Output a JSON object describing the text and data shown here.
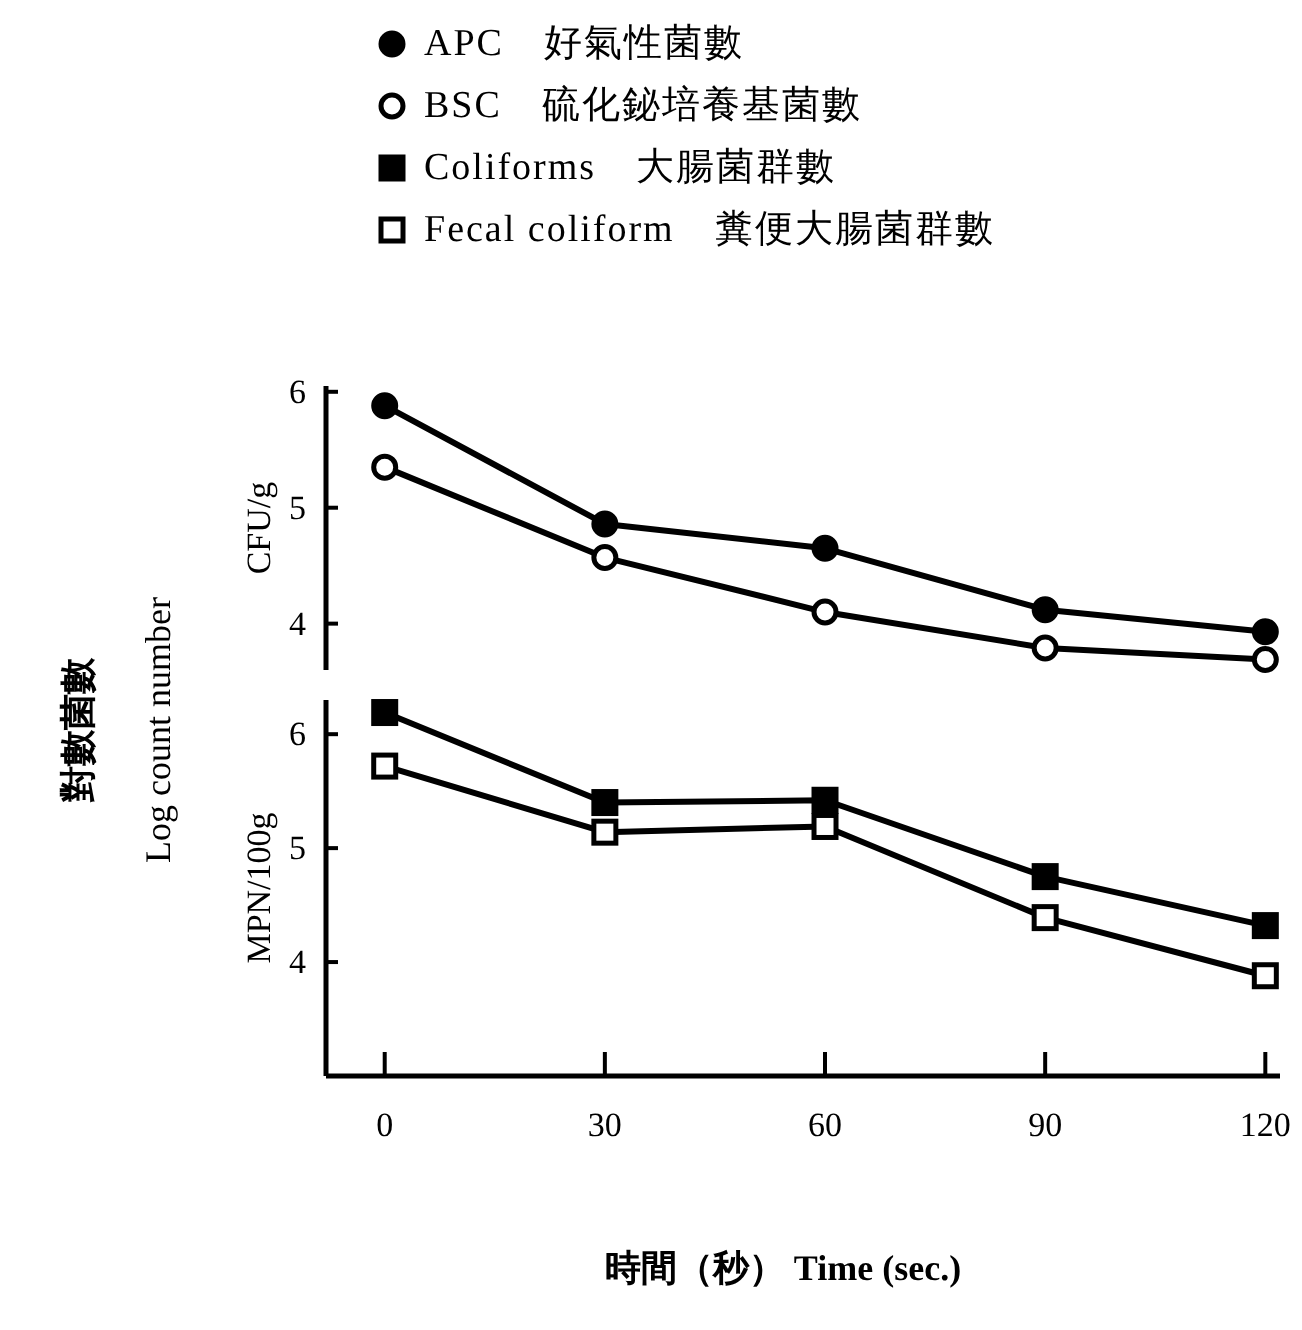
{
  "chart_data": [
    {
      "type": "line",
      "ylabel": "CFU/g",
      "annotations": [
        "對數菌數",
        "Log count number"
      ],
      "ylim": [
        3.6,
        6.05
      ],
      "yticks": [
        4,
        5,
        6
      ],
      "tick_labels": "y",
      "legend": "top",
      "line_style": "solid",
      "x": [
        0,
        30,
        60,
        90,
        120
      ],
      "series": [
        {
          "name": "APC　好氣性菌數",
          "color": "#000000",
          "marker": "circle",
          "values": [
            5.88,
            4.86,
            4.65,
            4.12,
            3.93
          ]
        },
        {
          "name": "BSC　硫化鉍培養基菌數",
          "color": "#000000",
          "marker": "circle_open",
          "values": [
            5.35,
            4.57,
            4.1,
            3.79,
            3.69
          ]
        }
      ]
    },
    {
      "type": "line",
      "ylabel": "MPN/100g",
      "xlabel": "時間（秒） Time (sec.)",
      "xlim": [
        -8,
        122
      ],
      "xticks": [
        0,
        30,
        60,
        90,
        120
      ],
      "ylim": [
        3.0,
        6.3
      ],
      "yticks": [
        4,
        5,
        6
      ],
      "legend": "top",
      "line_style": "solid",
      "x": [
        0,
        30,
        60,
        90,
        120
      ],
      "series": [
        {
          "name": "Coliforms　大腸菌群數",
          "color": "#000000",
          "marker": "square",
          "values": [
            6.19,
            5.4,
            5.42,
            4.75,
            4.32
          ]
        },
        {
          "name": "Fecal coliform　糞便大腸菌群數",
          "color": "#000000",
          "marker": "square_open",
          "values": [
            5.72,
            5.14,
            5.19,
            4.39,
            3.88
          ]
        }
      ]
    }
  ]
}
